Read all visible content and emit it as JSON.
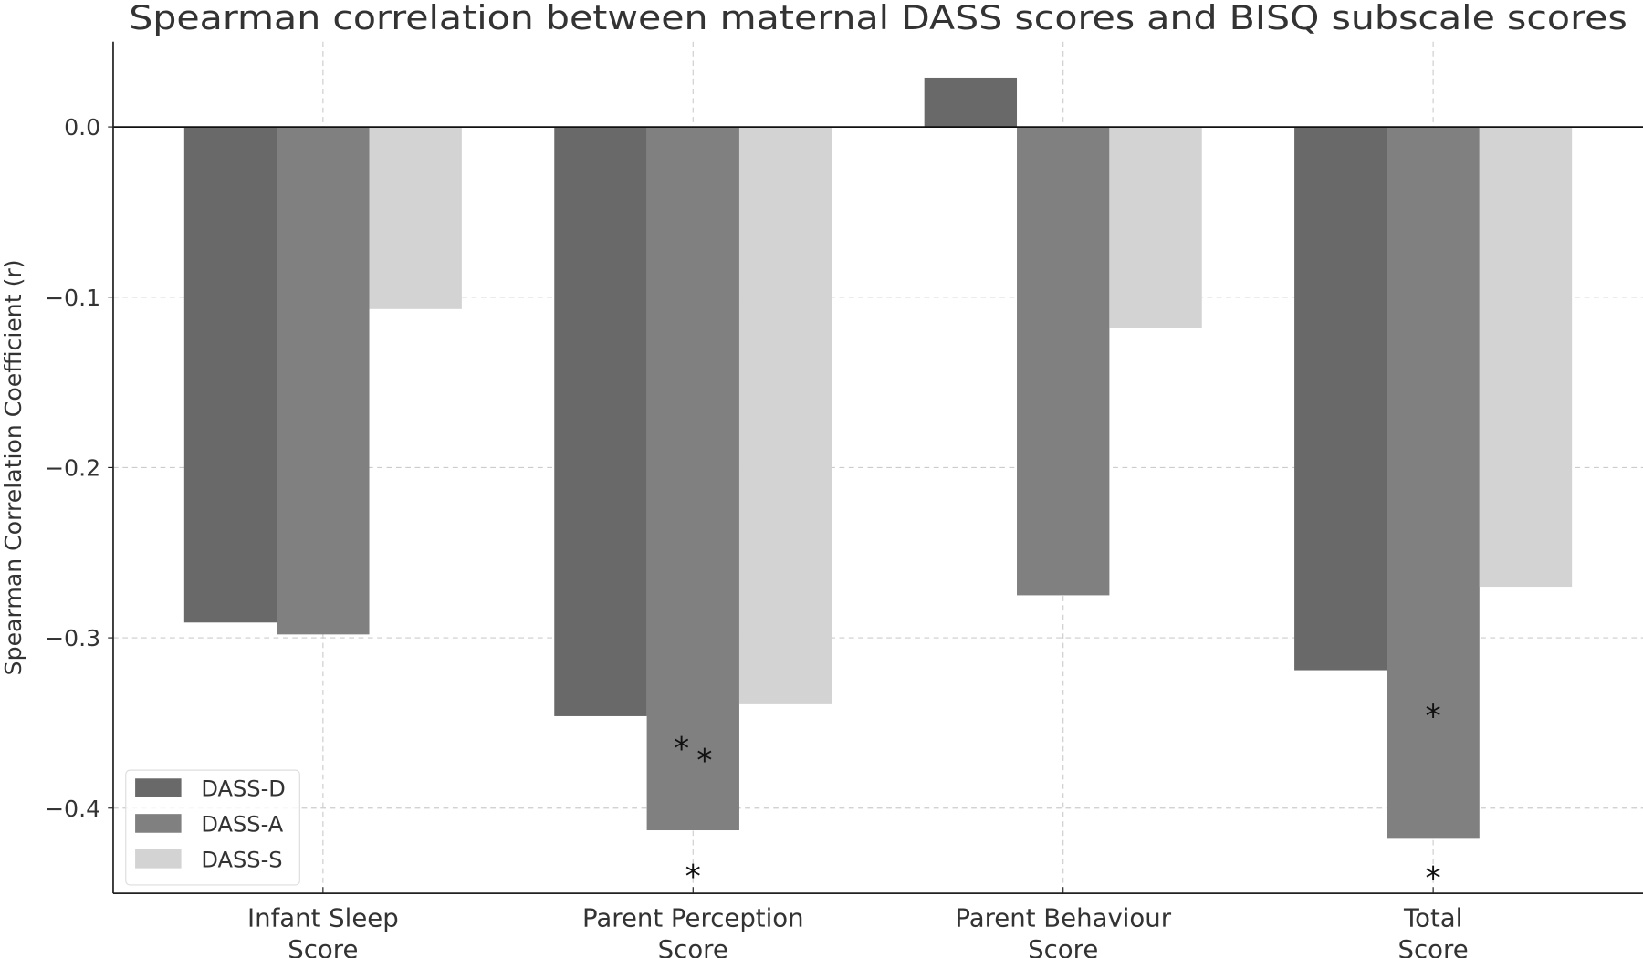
{
  "chart_data": {
    "type": "bar",
    "title": "Spearman correlation between maternal DASS scores and BISQ subscale scores",
    "xlabel": "",
    "ylabel": "Spearman Correlation Coefficient (r)",
    "categories": [
      "Infant Sleep\nScore",
      "Parent Perception\nScore",
      "Parent Behaviour\nScore",
      "Total\nScore"
    ],
    "series": [
      {
        "name": "DASS-D",
        "color": "#696969",
        "values": [
          -0.291,
          -0.346,
          0.029,
          -0.319
        ]
      },
      {
        "name": "DASS-A",
        "color": "#808080",
        "values": [
          -0.298,
          -0.413,
          -0.275,
          -0.418
        ]
      },
      {
        "name": "DASS-S",
        "color": "#d3d3d3",
        "values": [
          -0.107,
          -0.339,
          -0.118,
          -0.27
        ]
      }
    ],
    "annotations": [
      {
        "text": "*",
        "category": 1,
        "y": -0.364
      },
      {
        "text": "*",
        "category": 1,
        "y": -0.371
      },
      {
        "text": "*",
        "category": 1,
        "y": -0.439
      },
      {
        "text": "*",
        "category": 3,
        "y": -0.345
      },
      {
        "text": "*",
        "category": 3,
        "y": -0.443
      }
    ],
    "ylim": [
      -0.45,
      0.05
    ],
    "yticks": [
      0.0,
      -0.1,
      -0.2,
      -0.3,
      -0.4
    ],
    "ytick_labels": [
      "0.0",
      "−0.1",
      "−0.2",
      "−0.3",
      "−0.4"
    ],
    "grid": true,
    "zero_line": true,
    "legend_position": "lower-left"
  }
}
